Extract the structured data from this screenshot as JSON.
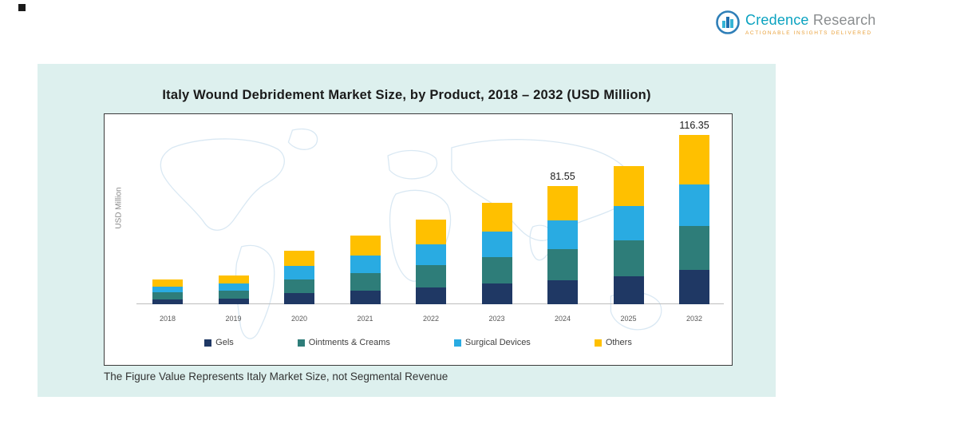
{
  "logo": {
    "brand_primary": "Credence",
    "brand_secondary": "Research",
    "tagline": "Actionable Insights Delivered",
    "brand_primary_color": "#0aa2c0",
    "brand_secondary_color": "#8a8d8f",
    "tagline_color": "#e9a13b"
  },
  "chart_data": {
    "type": "bar",
    "stacked": true,
    "title": "Italy Wound Debridement Market Size, by Product, 2018 – 2032 (USD Million)",
    "ylabel": "USD Million",
    "xlabel": "",
    "grid": false,
    "legend_position": "bottom",
    "ylim": [
      0,
      130
    ],
    "categories": [
      "2018",
      "2019",
      "2020",
      "2021",
      "2022",
      "2023",
      "2024",
      "2025",
      "2032"
    ],
    "series": [
      {
        "name": "Gels",
        "color": "#1f3864",
        "values": [
          3.5,
          4.1,
          7.5,
          9.5,
          11.8,
          14.2,
          16.5,
          19.2,
          23.5
        ]
      },
      {
        "name": "Ointments & Creams",
        "color": "#2e7d79",
        "values": [
          4.5,
          5.2,
          9.6,
          12.2,
          15.1,
          18.2,
          21.2,
          24.7,
          30.3
        ]
      },
      {
        "name": "Surgical Devices",
        "color": "#29abe2",
        "values": [
          4.2,
          5.0,
          9.2,
          11.7,
          14.4,
          17.4,
          20.3,
          23.6,
          28.9
        ]
      },
      {
        "name": "Others",
        "color": "#ffc000",
        "values": [
          4.8,
          5.7,
          10.7,
          13.6,
          16.7,
          20.2,
          23.55,
          27.5,
          33.65
        ]
      }
    ],
    "totals": [
      17.0,
      20.0,
      37.0,
      47.0,
      58.0,
      70.0,
      81.55,
      95.0,
      116.35
    ],
    "data_labels": [
      {
        "category": "2024",
        "text": "81.55"
      },
      {
        "category": "2032",
        "text": "116.35"
      }
    ]
  },
  "footnote": "The Figure Value Represents Italy Market Size, not Segmental Revenue"
}
